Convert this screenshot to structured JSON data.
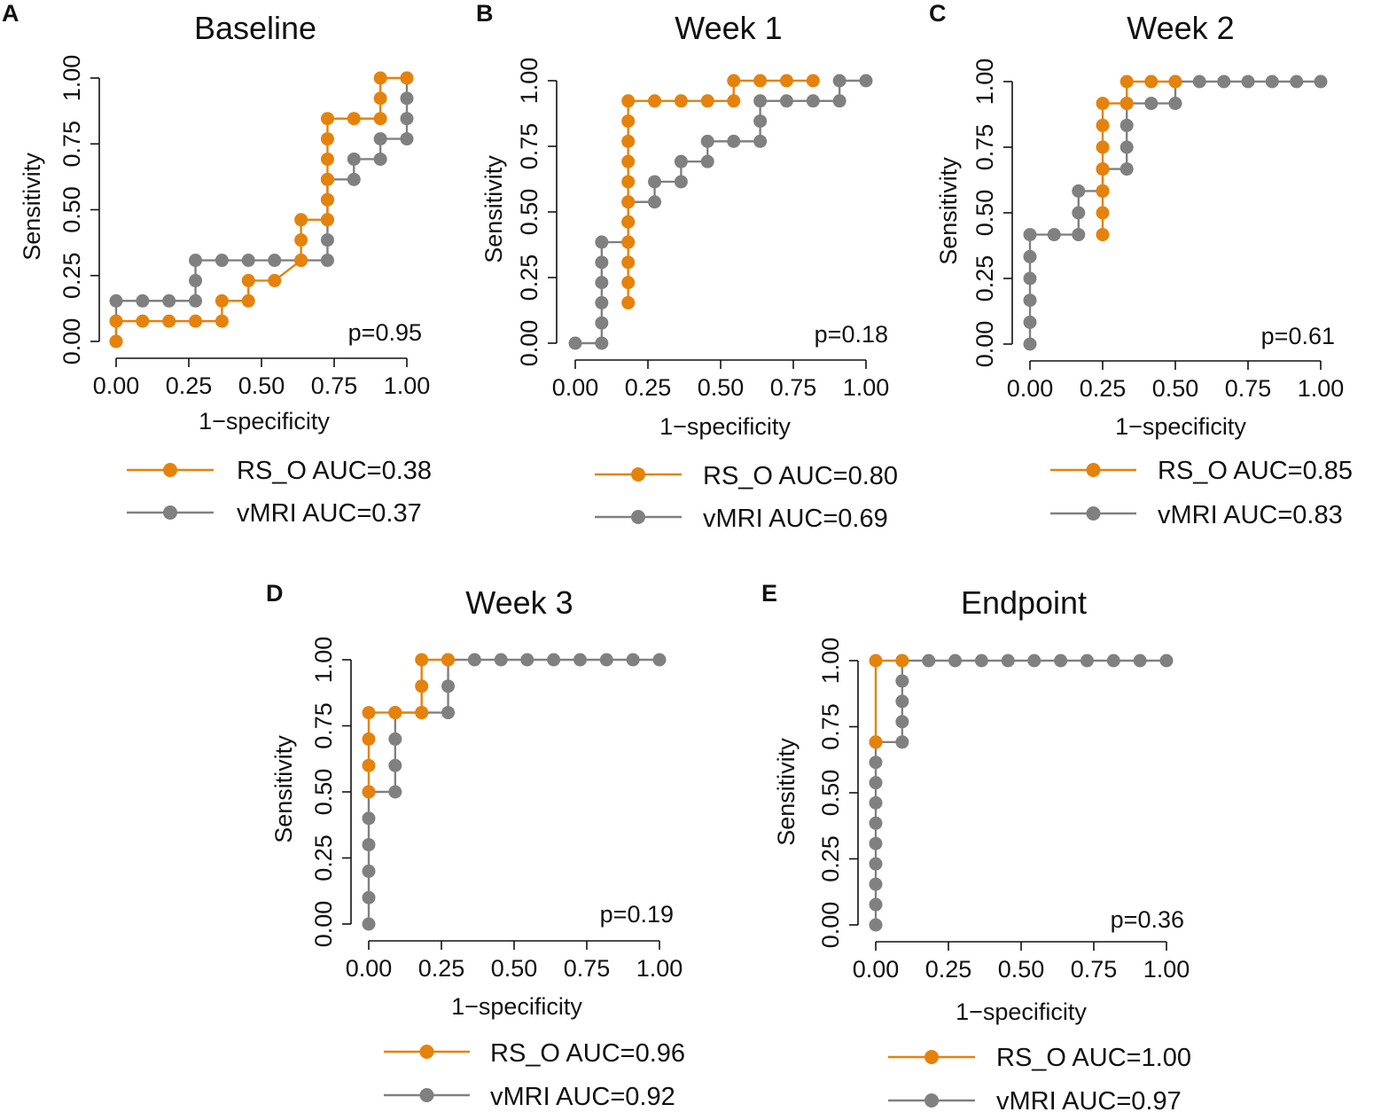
{
  "colors": {
    "rs_o": "#E5820C",
    "vmri": "#808080",
    "axis": "#111111"
  },
  "chart_data": [
    {
      "type": "line",
      "panel": "A",
      "title": "Baseline",
      "xlabel": "1−specificity",
      "ylabel": "Sensitivity",
      "xlim": [
        0,
        1
      ],
      "ylim": [
        0,
        1
      ],
      "xticks": [
        "0.00",
        "0.25",
        "0.50",
        "0.75",
        "1.00"
      ],
      "yticks": [
        "0.00",
        "0.25",
        "0.50",
        "0.75",
        "1.00"
      ],
      "p_value": "p=0.95",
      "series": [
        {
          "name": "RS_O",
          "legend": "RS_O AUC=0.38",
          "color_key": "rs_o",
          "points": [
            [
              0,
              0
            ],
            [
              0,
              0.077
            ],
            [
              0.091,
              0.077
            ],
            [
              0.182,
              0.077
            ],
            [
              0.273,
              0.077
            ],
            [
              0.364,
              0.077
            ],
            [
              0.364,
              0.154
            ],
            [
              0.455,
              0.154
            ],
            [
              0.455,
              0.231
            ],
            [
              0.545,
              0.231
            ],
            [
              0.636,
              0.308
            ],
            [
              0.636,
              0.385
            ],
            [
              0.636,
              0.462
            ],
            [
              0.727,
              0.462
            ],
            [
              0.727,
              0.538
            ],
            [
              0.727,
              0.615
            ],
            [
              0.727,
              0.692
            ],
            [
              0.727,
              0.769
            ],
            [
              0.727,
              0.846
            ],
            [
              0.818,
              0.846
            ],
            [
              0.909,
              0.846
            ],
            [
              0.909,
              0.923
            ],
            [
              0.909,
              1.0
            ],
            [
              1.0,
              1.0
            ]
          ]
        },
        {
          "name": "vMRI",
          "legend": "vMRI AUC=0.37",
          "color_key": "vmri",
          "points": [
            [
              0,
              0
            ],
            [
              0,
              0.077
            ],
            [
              0,
              0.154
            ],
            [
              0.091,
              0.154
            ],
            [
              0.182,
              0.154
            ],
            [
              0.273,
              0.154
            ],
            [
              0.273,
              0.231
            ],
            [
              0.273,
              0.308
            ],
            [
              0.364,
              0.308
            ],
            [
              0.455,
              0.308
            ],
            [
              0.545,
              0.308
            ],
            [
              0.636,
              0.308
            ],
            [
              0.727,
              0.308
            ],
            [
              0.727,
              0.385
            ],
            [
              0.727,
              0.462
            ],
            [
              0.727,
              0.538
            ],
            [
              0.727,
              0.615
            ],
            [
              0.818,
              0.615
            ],
            [
              0.818,
              0.692
            ],
            [
              0.909,
              0.692
            ],
            [
              0.909,
              0.769
            ],
            [
              1.0,
              0.769
            ],
            [
              1.0,
              0.846
            ],
            [
              1.0,
              0.923
            ],
            [
              1.0,
              1.0
            ]
          ]
        }
      ]
    },
    {
      "type": "line",
      "panel": "B",
      "title": "Week 1",
      "xlabel": "1−specificity",
      "ylabel": "Sensitivity",
      "xlim": [
        0,
        1
      ],
      "ylim": [
        0,
        1
      ],
      "xticks": [
        "0.00",
        "0.25",
        "0.50",
        "0.75",
        "1.00"
      ],
      "yticks": [
        "0.00",
        "0.25",
        "0.50",
        "0.75",
        "1.00"
      ],
      "p_value": "p=0.18",
      "series": [
        {
          "name": "RS_O",
          "legend": "RS_O AUC=0.80",
          "color_key": "rs_o",
          "points": [
            [
              0.182,
              0.154
            ],
            [
              0.182,
              0.231
            ],
            [
              0.182,
              0.308
            ],
            [
              0.182,
              0.385
            ],
            [
              0.182,
              0.462
            ],
            [
              0.182,
              0.538
            ],
            [
              0.182,
              0.615
            ],
            [
              0.182,
              0.692
            ],
            [
              0.182,
              0.769
            ],
            [
              0.182,
              0.846
            ],
            [
              0.182,
              0.923
            ],
            [
              0.273,
              0.923
            ],
            [
              0.364,
              0.923
            ],
            [
              0.455,
              0.923
            ],
            [
              0.545,
              0.923
            ],
            [
              0.545,
              1.0
            ],
            [
              0.636,
              1.0
            ],
            [
              0.727,
              1.0
            ],
            [
              0.818,
              1.0
            ]
          ]
        },
        {
          "name": "vMRI",
          "legend": "vMRI AUC=0.69",
          "color_key": "vmri",
          "points": [
            [
              0,
              0
            ],
            [
              0.091,
              0
            ],
            [
              0.091,
              0.077
            ],
            [
              0.091,
              0.154
            ],
            [
              0.091,
              0.231
            ],
            [
              0.091,
              0.308
            ],
            [
              0.091,
              0.385
            ],
            [
              0.182,
              0.385
            ],
            [
              0.182,
              0.462
            ],
            [
              0.182,
              0.538
            ],
            [
              0.273,
              0.538
            ],
            [
              0.273,
              0.615
            ],
            [
              0.364,
              0.615
            ],
            [
              0.364,
              0.692
            ],
            [
              0.455,
              0.692
            ],
            [
              0.455,
              0.769
            ],
            [
              0.545,
              0.769
            ],
            [
              0.636,
              0.769
            ],
            [
              0.636,
              0.846
            ],
            [
              0.636,
              0.923
            ],
            [
              0.727,
              0.923
            ],
            [
              0.818,
              0.923
            ],
            [
              0.909,
              0.923
            ],
            [
              0.909,
              1.0
            ],
            [
              1.0,
              1.0
            ]
          ]
        }
      ]
    },
    {
      "type": "line",
      "panel": "C",
      "title": "Week 2",
      "xlabel": "1−specificity",
      "ylabel": "Sensitivity",
      "xlim": [
        0,
        1
      ],
      "ylim": [
        0,
        1
      ],
      "xticks": [
        "0.00",
        "0.25",
        "0.50",
        "0.75",
        "1.00"
      ],
      "yticks": [
        "0.00",
        "0.25",
        "0.50",
        "0.75",
        "1.00"
      ],
      "p_value": "p=0.61",
      "series": [
        {
          "name": "RS_O",
          "legend": "RS_O AUC=0.85",
          "color_key": "rs_o",
          "points": [
            [
              0.25,
              0.417
            ],
            [
              0.25,
              0.5
            ],
            [
              0.25,
              0.583
            ],
            [
              0.25,
              0.667
            ],
            [
              0.25,
              0.75
            ],
            [
              0.25,
              0.833
            ],
            [
              0.25,
              0.917
            ],
            [
              0.333,
              0.917
            ],
            [
              0.333,
              1.0
            ],
            [
              0.417,
              1.0
            ],
            [
              0.5,
              1.0
            ]
          ]
        },
        {
          "name": "vMRI",
          "legend": "vMRI AUC=0.83",
          "color_key": "vmri",
          "points": [
            [
              0,
              0
            ],
            [
              0,
              0.083
            ],
            [
              0,
              0.167
            ],
            [
              0,
              0.25
            ],
            [
              0,
              0.333
            ],
            [
              0,
              0.417
            ],
            [
              0.083,
              0.417
            ],
            [
              0.167,
              0.417
            ],
            [
              0.167,
              0.5
            ],
            [
              0.167,
              0.583
            ],
            [
              0.25,
              0.583
            ],
            [
              0.25,
              0.667
            ],
            [
              0.333,
              0.667
            ],
            [
              0.333,
              0.75
            ],
            [
              0.333,
              0.833
            ],
            [
              0.333,
              0.917
            ],
            [
              0.417,
              0.917
            ],
            [
              0.5,
              0.917
            ],
            [
              0.5,
              1.0
            ],
            [
              0.583,
              1.0
            ],
            [
              0.667,
              1.0
            ],
            [
              0.75,
              1.0
            ],
            [
              0.833,
              1.0
            ],
            [
              0.917,
              1.0
            ],
            [
              1.0,
              1.0
            ]
          ]
        }
      ]
    },
    {
      "type": "line",
      "panel": "D",
      "title": "Week 3",
      "xlabel": "1−specificity",
      "ylabel": "Sensitivity",
      "xlim": [
        0,
        1
      ],
      "ylim": [
        0,
        1
      ],
      "xticks": [
        "0.00",
        "0.25",
        "0.50",
        "0.75",
        "1.00"
      ],
      "yticks": [
        "0.00",
        "0.25",
        "0.50",
        "0.75",
        "1.00"
      ],
      "p_value": "p=0.19",
      "series": [
        {
          "name": "RS_O",
          "legend": "RS_O AUC=0.96",
          "color_key": "rs_o",
          "points": [
            [
              0,
              0.5
            ],
            [
              0,
              0.6
            ],
            [
              0,
              0.7
            ],
            [
              0,
              0.8
            ],
            [
              0.091,
              0.8
            ],
            [
              0.182,
              0.8
            ],
            [
              0.182,
              0.9
            ],
            [
              0.182,
              1.0
            ],
            [
              0.273,
              1.0
            ]
          ]
        },
        {
          "name": "vMRI",
          "legend": "vMRI AUC=0.92",
          "color_key": "vmri",
          "points": [
            [
              0,
              0
            ],
            [
              0,
              0.1
            ],
            [
              0,
              0.2
            ],
            [
              0,
              0.3
            ],
            [
              0,
              0.4
            ],
            [
              0,
              0.5
            ],
            [
              0.091,
              0.5
            ],
            [
              0.091,
              0.6
            ],
            [
              0.091,
              0.7
            ],
            [
              0.091,
              0.8
            ],
            [
              0.182,
              0.8
            ],
            [
              0.273,
              0.8
            ],
            [
              0.273,
              0.9
            ],
            [
              0.273,
              1.0
            ],
            [
              0.364,
              1.0
            ],
            [
              0.455,
              1.0
            ],
            [
              0.545,
              1.0
            ],
            [
              0.636,
              1.0
            ],
            [
              0.727,
              1.0
            ],
            [
              0.818,
              1.0
            ],
            [
              0.909,
              1.0
            ],
            [
              1.0,
              1.0
            ]
          ]
        }
      ]
    },
    {
      "type": "line",
      "panel": "E",
      "title": "Endpoint",
      "xlabel": "1−specificity",
      "ylabel": "Sensitivity",
      "xlim": [
        0,
        1
      ],
      "ylim": [
        0,
        1
      ],
      "xticks": [
        "0.00",
        "0.25",
        "0.50",
        "0.75",
        "1.00"
      ],
      "yticks": [
        "0.00",
        "0.25",
        "0.50",
        "0.75",
        "1.00"
      ],
      "p_value": "p=0.36",
      "series": [
        {
          "name": "RS_O",
          "legend": "RS_O AUC=1.00",
          "color_key": "rs_o",
          "points": [
            [
              0,
              0.692
            ],
            [
              0,
              1.0
            ],
            [
              0.091,
              1.0
            ]
          ]
        },
        {
          "name": "vMRI",
          "legend": "vMRI AUC=0.97",
          "color_key": "vmri",
          "points": [
            [
              0,
              0
            ],
            [
              0,
              0.077
            ],
            [
              0,
              0.154
            ],
            [
              0,
              0.231
            ],
            [
              0,
              0.308
            ],
            [
              0,
              0.385
            ],
            [
              0,
              0.462
            ],
            [
              0,
              0.538
            ],
            [
              0,
              0.615
            ],
            [
              0,
              0.692
            ],
            [
              0.091,
              0.692
            ],
            [
              0.091,
              0.769
            ],
            [
              0.091,
              0.846
            ],
            [
              0.091,
              0.923
            ],
            [
              0.091,
              1.0
            ],
            [
              0.182,
              1.0
            ],
            [
              0.273,
              1.0
            ],
            [
              0.364,
              1.0
            ],
            [
              0.455,
              1.0
            ],
            [
              0.545,
              1.0
            ],
            [
              0.636,
              1.0
            ],
            [
              0.727,
              1.0
            ],
            [
              0.818,
              1.0
            ],
            [
              0.909,
              1.0
            ],
            [
              1.0,
              1.0
            ]
          ]
        }
      ]
    }
  ]
}
